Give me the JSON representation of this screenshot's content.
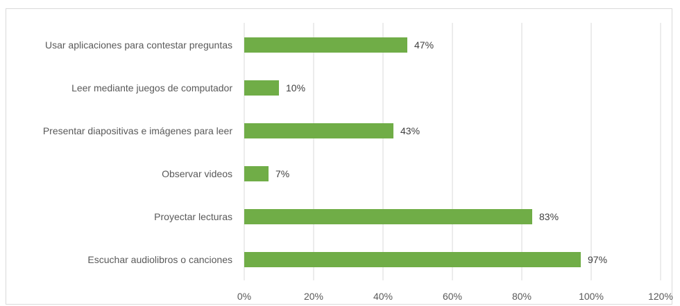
{
  "chart_data": {
    "type": "bar",
    "orientation": "horizontal",
    "title": "",
    "xlabel": "",
    "ylabel": "",
    "categories": [
      "Usar aplicaciones para contestar preguntas",
      "Leer mediante juegos de computador",
      "Presentar diapositivas e imágenes para leer",
      "Observar videos",
      "Proyectar lecturas",
      "Escuchar audiolibros o canciones"
    ],
    "values": [
      47,
      10,
      43,
      7,
      83,
      97
    ],
    "data_labels": [
      "47%",
      "10%",
      "43%",
      "7%",
      "83%",
      "97%"
    ],
    "xlim": [
      0,
      120
    ],
    "ticks": [
      0,
      20,
      40,
      60,
      80,
      100,
      120
    ],
    "tick_labels": [
      "0%",
      "20%",
      "40%",
      "60%",
      "80%",
      "100%",
      "120%"
    ],
    "grid": true,
    "legend": "none",
    "bar_color": "#70ad47",
    "grid_color": "#d9d9d9"
  }
}
